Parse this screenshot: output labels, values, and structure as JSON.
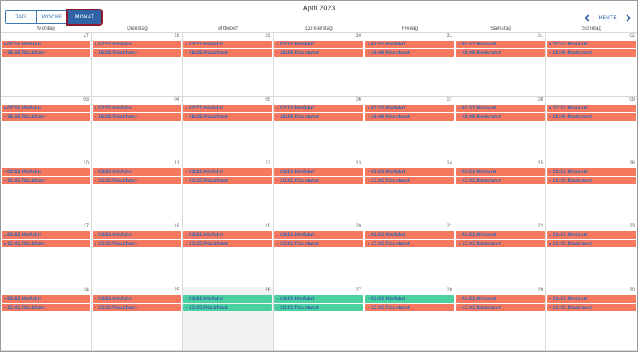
{
  "header": {
    "title": "April 2023",
    "views": {
      "day": "TAG",
      "week": "WOCHE",
      "month": "MONAT",
      "active": "month"
    },
    "today_label": "HEUTE",
    "icons": {
      "prev": "chevron-left-icon",
      "next": "chevron-right-icon"
    }
  },
  "weekdays": [
    "Montag",
    "Dienstag",
    "Mittwoch",
    "Donnerstag",
    "Freitag",
    "Samstag",
    "Sonntag"
  ],
  "colors": {
    "event_default": "#f6785e",
    "event_highlight": "#4dd0a0",
    "accent": "#2e63a6",
    "today_bg": "#f2f2f2"
  },
  "event_labels": {
    "outbound": "02:51 Hinfahrt",
    "return": "15:05 Rückfahrt"
  },
  "weeks": [
    {
      "days": [
        {
          "num": "27",
          "events": [
            "red",
            "red"
          ]
        },
        {
          "num": "28",
          "events": [
            "red",
            "red"
          ]
        },
        {
          "num": "29",
          "events": [
            "red",
            "red"
          ]
        },
        {
          "num": "30",
          "events": [
            "red",
            "red"
          ]
        },
        {
          "num": "31",
          "events": [
            "red",
            "red"
          ]
        },
        {
          "num": "01",
          "events": [
            "red",
            "red"
          ]
        },
        {
          "num": "02",
          "events": [
            "red",
            "red"
          ]
        }
      ]
    },
    {
      "days": [
        {
          "num": "03",
          "events": [
            "red",
            "red"
          ]
        },
        {
          "num": "04",
          "events": [
            "red",
            "red"
          ]
        },
        {
          "num": "05",
          "events": [
            "red",
            "red"
          ]
        },
        {
          "num": "06",
          "events": [
            "red",
            "red"
          ]
        },
        {
          "num": "07",
          "events": [
            "red",
            "red"
          ]
        },
        {
          "num": "08",
          "events": [
            "red",
            "red"
          ]
        },
        {
          "num": "09",
          "events": [
            "red",
            "red"
          ]
        }
      ]
    },
    {
      "days": [
        {
          "num": "10",
          "events": [
            "red",
            "red"
          ]
        },
        {
          "num": "11",
          "events": [
            "red",
            "red"
          ]
        },
        {
          "num": "12",
          "events": [
            "red",
            "red"
          ]
        },
        {
          "num": "13",
          "events": [
            "red",
            "red"
          ]
        },
        {
          "num": "14",
          "events": [
            "red",
            "red"
          ]
        },
        {
          "num": "15",
          "events": [
            "red",
            "red"
          ]
        },
        {
          "num": "16",
          "events": [
            "red",
            "red"
          ]
        }
      ]
    },
    {
      "days": [
        {
          "num": "17",
          "events": [
            "red",
            "red"
          ]
        },
        {
          "num": "18",
          "events": [
            "red",
            "red"
          ]
        },
        {
          "num": "19",
          "events": [
            "red",
            "red"
          ]
        },
        {
          "num": "20",
          "events": [
            "red",
            "red"
          ]
        },
        {
          "num": "21",
          "events": [
            "red",
            "red"
          ]
        },
        {
          "num": "22",
          "events": [
            "red",
            "red"
          ]
        },
        {
          "num": "23",
          "events": [
            "red",
            "red"
          ]
        }
      ]
    },
    {
      "days": [
        {
          "num": "24",
          "events": [
            "red",
            "red"
          ]
        },
        {
          "num": "25",
          "events": [
            "red",
            "red"
          ]
        },
        {
          "num": "26",
          "events": [
            "green",
            "green"
          ],
          "today": true
        },
        {
          "num": "27",
          "events": [
            "green",
            "green"
          ]
        },
        {
          "num": "28",
          "events": [
            "green",
            "red"
          ]
        },
        {
          "num": "29",
          "events": [
            "red",
            "red"
          ]
        },
        {
          "num": "30",
          "events": [
            "red",
            "red"
          ]
        }
      ]
    }
  ]
}
